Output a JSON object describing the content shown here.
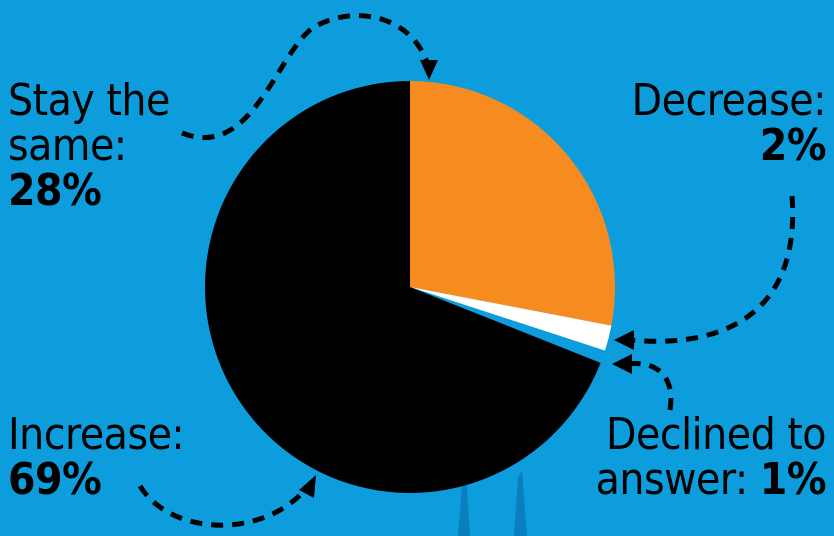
{
  "chart_data": {
    "type": "pie",
    "slices": [
      {
        "label": "Stay the same",
        "value": 28,
        "color": "#f68b1f"
      },
      {
        "label": "Decrease",
        "value": 2,
        "color": "#ffffff"
      },
      {
        "label": "Declined to answer",
        "value": 1,
        "color": "#0d9ddd"
      },
      {
        "label": "Increase",
        "value": 69,
        "color": "#000000"
      }
    ],
    "labels": {
      "stay": {
        "line1": "Stay the",
        "line2": "same:",
        "pct": "28%"
      },
      "decrease": {
        "line1": "Decrease:",
        "pct": "2%"
      },
      "increase": {
        "line1": "Increase:",
        "pct": "69%"
      },
      "declined": {
        "line1": "Declined to",
        "line2": "answer:",
        "pct": "1%"
      }
    }
  },
  "colors": {
    "background": "#0d9ddd",
    "orange": "#f68b1f",
    "white": "#ffffff",
    "black": "#000000"
  }
}
